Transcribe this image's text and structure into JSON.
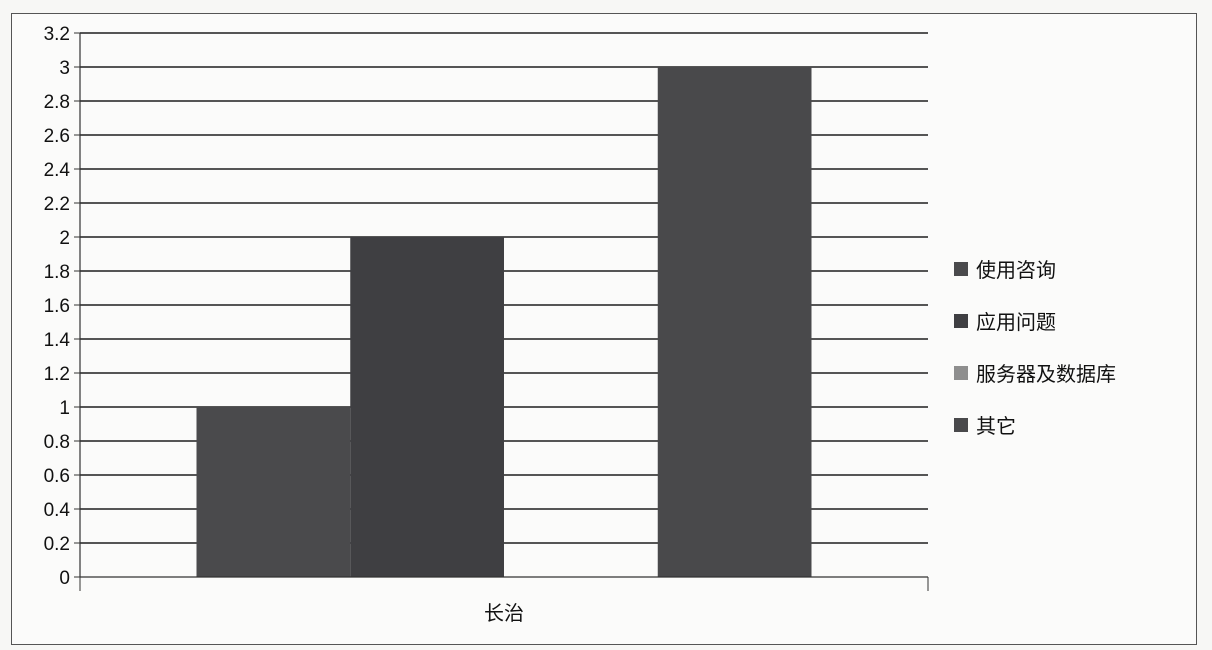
{
  "chart_data": {
    "type": "bar",
    "categories": [
      "长治"
    ],
    "series": [
      {
        "name": "使用咨询",
        "values": [
          1
        ],
        "color": "#4a4a4c"
      },
      {
        "name": "应用问题",
        "values": [
          2
        ],
        "color": "#3f3f42"
      },
      {
        "name": "服务器及数据库",
        "values": [
          0
        ],
        "color": "#8e8e8e"
      },
      {
        "name": "其它",
        "values": [
          3
        ],
        "color": "#49494b"
      }
    ],
    "title": "",
    "xlabel": "",
    "ylabel": "",
    "ylim": [
      0,
      3.2
    ],
    "yticks": [
      "0",
      "0.2",
      "0.4",
      "0.6",
      "0.8",
      "1",
      "1.2",
      "1.4",
      "1.6",
      "1.8",
      "2",
      "2.2",
      "2.4",
      "2.6",
      "2.8",
      "3",
      "3.2"
    ],
    "grid": true,
    "legend_position": "right"
  }
}
